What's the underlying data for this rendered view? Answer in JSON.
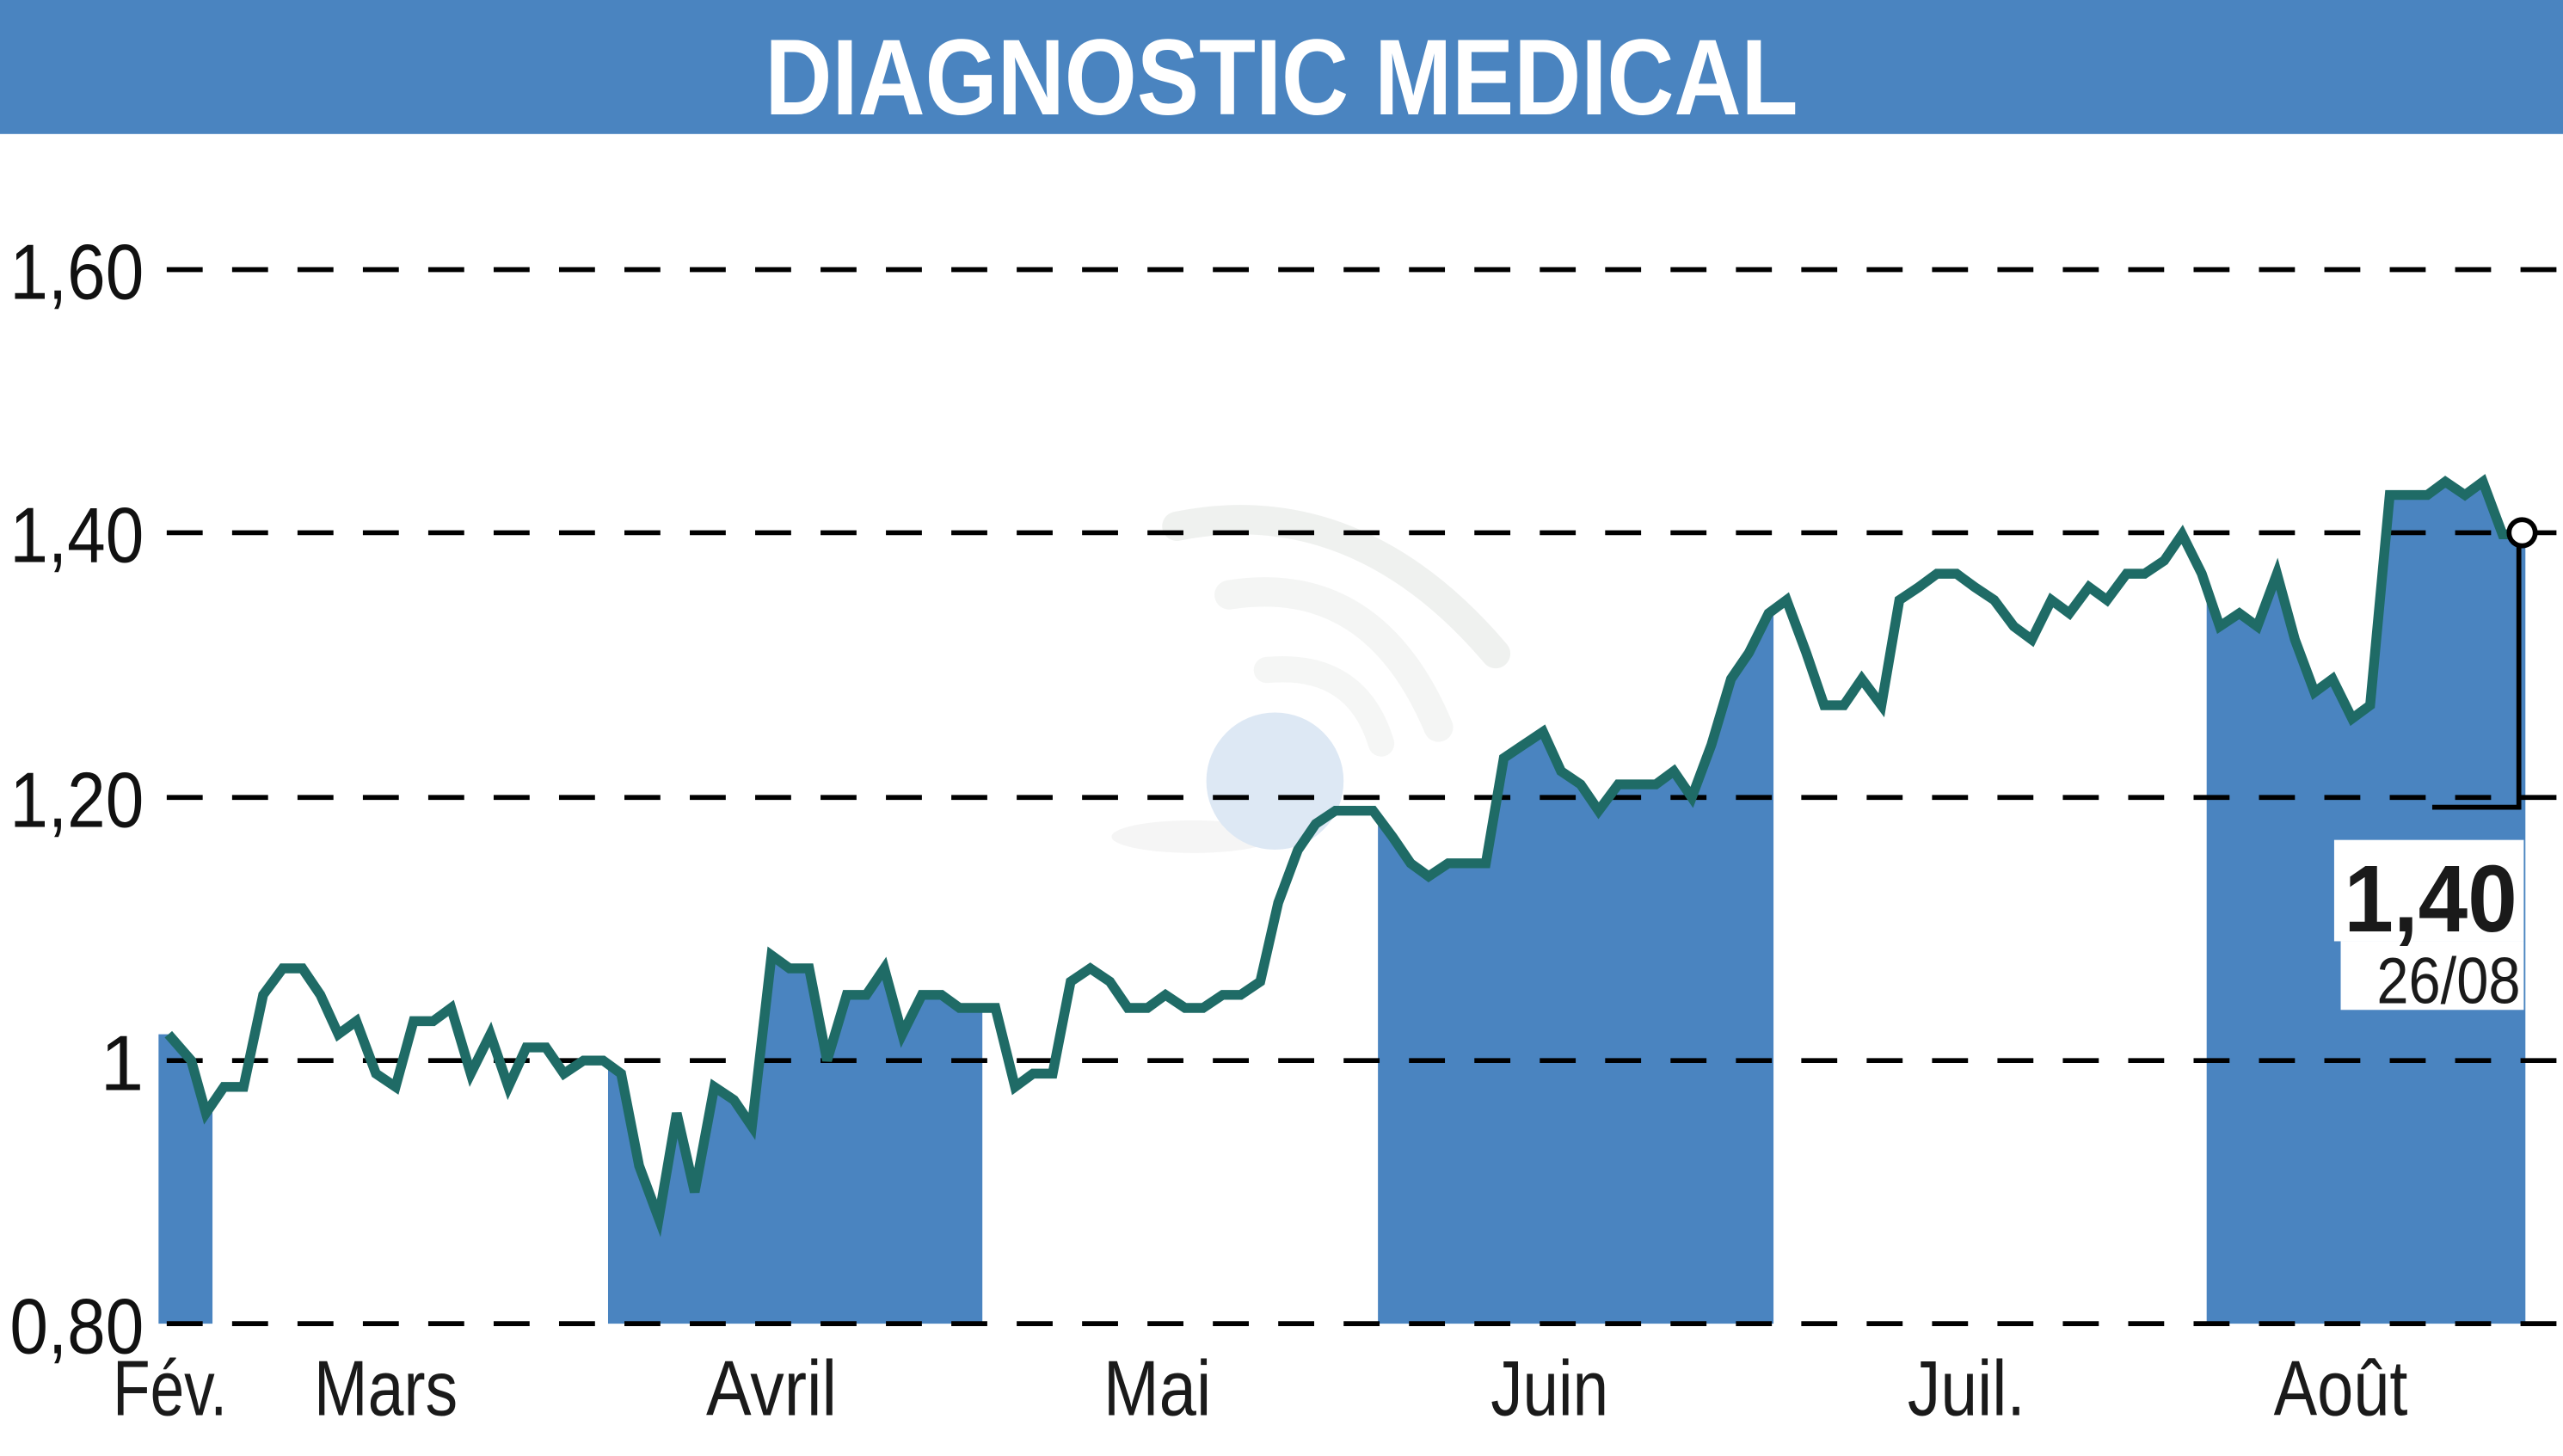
{
  "header": {
    "title": "DIAGNOSTIC MEDICAL",
    "background_color": "#4a84c0",
    "text_color": "#ffffff"
  },
  "colors": {
    "band": "#4a84c0",
    "line": "#1f6b66",
    "grid": "#000000",
    "text": "#1a1a1a"
  },
  "last_value": {
    "value": "1,40",
    "date": "26/08"
  },
  "chart_data": {
    "type": "line",
    "title": "DIAGNOSTIC MEDICAL",
    "xlabel": "",
    "ylabel": "",
    "ylim": [
      0.8,
      1.6
    ],
    "grid": true,
    "grid_style": "dashed horizontal",
    "legend": "none",
    "y_ticks": [
      "0,80",
      "1",
      "1,20",
      "1,40",
      "1,60"
    ],
    "y_tick_values": [
      0.8,
      1.0,
      1.2,
      1.4,
      1.6
    ],
    "x_tick_labels": [
      "Fév.",
      "Mars",
      "Avril",
      "Mai",
      "Juin",
      "Juil.",
      "Août"
    ],
    "alternating_month_bands": [
      "Fév.",
      "Avril",
      "Juin",
      "Août"
    ],
    "last_point": {
      "date": "26/08",
      "value": 1.4
    },
    "series": [
      {
        "name": "DIAGNOSTIC MEDICAL",
        "x": [
          103,
          117,
          126,
          137,
          149,
          161,
          173,
          185,
          196,
          207,
          218,
          230,
          242,
          253,
          265,
          276,
          288,
          300,
          311,
          322,
          334,
          345,
          357,
          369,
          380,
          391,
          403,
          414,
          425,
          437,
          449,
          460,
          472,
          483,
          495,
          506,
          518,
          530,
          541,
          552,
          564,
          576,
          587,
          598,
          609,
          621,
          632,
          644,
          655,
          667,
          679,
          690,
          702,
          713,
          725,
          736,
          748,
          759,
          771,
          782,
          794,
          805,
          817,
          829,
          840,
          852,
          863,
          874,
          886,
          897,
          909,
          920,
          932,
          944,
          955,
          967,
          978,
          990,
          1001,
          1013,
          1024,
          1035,
          1047,
          1059,
          1070,
          1082,
          1093,
          1105,
          1116,
          1128,
          1139,
          1151,
          1162,
          1174,
          1185,
          1197,
          1208,
          1220,
          1232,
          1243,
          1255,
          1266,
          1278,
          1289,
          1301,
          1312,
          1324,
          1335,
          1347,
          1358,
          1370,
          1381,
          1393,
          1404,
          1416,
          1427,
          1439,
          1450,
          1462,
          1473,
          1485,
          1496,
          1508,
          1519,
          1531,
          1543
        ],
        "values": [
          1.02,
          1.0,
          0.96,
          0.98,
          0.98,
          1.05,
          1.07,
          1.07,
          1.05,
          1.02,
          1.03,
          0.99,
          0.98,
          1.03,
          1.03,
          1.04,
          0.99,
          1.02,
          0.98,
          1.01,
          1.01,
          0.99,
          1.0,
          1.0,
          0.99,
          0.92,
          0.88,
          0.96,
          0.9,
          0.98,
          0.97,
          0.95,
          1.08,
          1.07,
          1.07,
          1.0,
          1.05,
          1.05,
          1.07,
          1.02,
          1.05,
          1.05,
          1.04,
          1.04,
          1.04,
          0.98,
          0.99,
          0.99,
          1.06,
          1.07,
          1.06,
          1.04,
          1.04,
          1.05,
          1.04,
          1.04,
          1.05,
          1.05,
          1.06,
          1.12,
          1.16,
          1.18,
          1.19,
          1.19,
          1.19,
          1.17,
          1.15,
          1.14,
          1.15,
          1.15,
          1.15,
          1.23,
          1.24,
          1.25,
          1.22,
          1.21,
          1.19,
          1.21,
          1.21,
          1.21,
          1.22,
          1.2,
          1.24,
          1.29,
          1.31,
          1.34,
          1.35,
          1.31,
          1.27,
          1.27,
          1.29,
          1.27,
          1.35,
          1.36,
          1.37,
          1.37,
          1.36,
          1.35,
          1.33,
          1.32,
          1.35,
          1.34,
          1.36,
          1.35,
          1.37,
          1.37,
          1.38,
          1.4,
          1.37,
          1.33,
          1.34,
          1.33,
          1.37,
          1.32,
          1.28,
          1.29,
          1.26,
          1.27,
          1.43,
          1.43,
          1.43,
          1.44,
          1.43,
          1.44,
          1.4,
          1.4
        ]
      }
    ],
    "month_bands_x": [
      [
        97,
        130
      ],
      [
        372,
        601
      ],
      [
        843,
        1085
      ],
      [
        1350,
        1545
      ]
    ],
    "month_label_x": [
      104,
      236,
      472,
      708,
      948,
      1203,
      1432
    ]
  }
}
